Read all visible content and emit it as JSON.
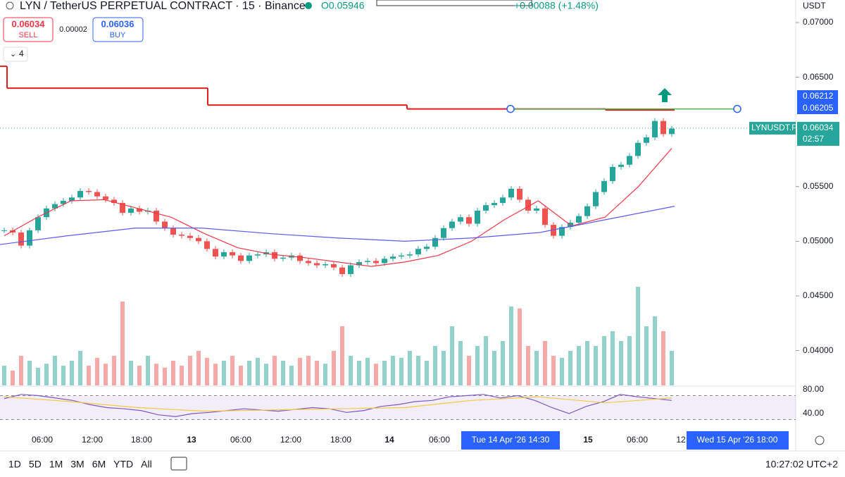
{
  "header": {
    "symbol": "LYN / TetherUS PERPETUAL CONTRACT · 15 · Binance",
    "open": "O0.05946",
    "change": "+0.00088 (+1.48%)"
  },
  "order_panel": {
    "sell_price": "0.06034",
    "sell": "SELL",
    "spread": "0.00002",
    "buy_price": "0.06036",
    "buy": "BUY",
    "indicators": "4"
  },
  "price_axis": {
    "currency": "USDT",
    "ylim": [
      0.0368,
      0.072
    ],
    "yticks": [
      {
        "value": 0.07,
        "label": "0.07000"
      },
      {
        "value": 0.065,
        "label": "0.06500"
      },
      {
        "value": 0.055,
        "label": "0.05500"
      },
      {
        "value": 0.05,
        "label": "0.05000"
      },
      {
        "value": 0.045,
        "label": "0.04500"
      },
      {
        "value": 0.04,
        "label": "0.04000"
      }
    ],
    "labels": [
      {
        "value": 0.06212,
        "label": "0.06212"
      },
      {
        "value": 0.06205,
        "label": "0.06205"
      }
    ],
    "last": {
      "name": "LYNUSDT.P",
      "value": 0.06034,
      "label": "0.06034",
      "countdown": "02:57"
    }
  },
  "chart": {
    "closes": [
      0.051,
      0.0508,
      0.0496,
      0.051,
      0.0522,
      0.053,
      0.0534,
      0.0537,
      0.054,
      0.0546,
      0.0545,
      0.0541,
      0.0538,
      0.0535,
      0.0526,
      0.053,
      0.0527,
      0.0528,
      0.0518,
      0.0512,
      0.0506,
      0.0505,
      0.0503,
      0.05,
      0.0493,
      0.0486,
      0.049,
      0.0487,
      0.0482,
      0.0487,
      0.0488,
      0.049,
      0.0484,
      0.0485,
      0.0487,
      0.0482,
      0.048,
      0.0478,
      0.0479,
      0.0476,
      0.047,
      0.0478,
      0.0481,
      0.0482,
      0.048,
      0.0484,
      0.0486,
      0.0487,
      0.0488,
      0.0493,
      0.0495,
      0.0503,
      0.0512,
      0.0518,
      0.0522,
      0.0516,
      0.0528,
      0.0533,
      0.0535,
      0.054,
      0.0548,
      0.0538,
      0.0528,
      0.053,
      0.0515,
      0.0505,
      0.0513,
      0.0517,
      0.0523,
      0.0532,
      0.0545,
      0.0555,
      0.0568,
      0.057,
      0.0578,
      0.059,
      0.0595,
      0.061,
      0.0598,
      0.0603
    ],
    "volumes": [
      20,
      15,
      30,
      25,
      18,
      22,
      30,
      20,
      25,
      35,
      20,
      28,
      22,
      30,
      85,
      25,
      20,
      30,
      22,
      18,
      25,
      20,
      30,
      35,
      28,
      22,
      25,
      30,
      20,
      25,
      28,
      22,
      30,
      25,
      20,
      28,
      30,
      25,
      22,
      35,
      60,
      30,
      25,
      28,
      22,
      25,
      30,
      28,
      35,
      30,
      25,
      40,
      35,
      60,
      45,
      30,
      40,
      50,
      35,
      45,
      80,
      78,
      40,
      35,
      45,
      30,
      28,
      35,
      40,
      45,
      40,
      50,
      55,
      45,
      50,
      100,
      60,
      70,
      55,
      35
    ],
    "ma_fast": [
      0.0505,
      0.0522,
      0.0537,
      0.0538,
      0.053,
      0.0522,
      0.0507,
      0.0494,
      0.0488,
      0.0485,
      0.0481,
      0.0477,
      0.0481,
      0.0487,
      0.05,
      0.052,
      0.0537,
      0.0514,
      0.0522,
      0.055,
      0.0585
    ],
    "ma_slow": [
      0.0497,
      0.0505,
      0.0512,
      0.0512,
      0.0507,
      0.0503,
      0.05,
      0.0503,
      0.0508,
      0.052,
      0.0532
    ],
    "resistance": [
      0.066,
      0.064,
      0.06245,
      0.0621,
      0.062
    ],
    "trend_line": 0.0621,
    "rsi": [
      65,
      72,
      70,
      66,
      62,
      55,
      50,
      48,
      45,
      38,
      35,
      40,
      42,
      45,
      48,
      46,
      44,
      47,
      50,
      48,
      42,
      45,
      52,
      55,
      60,
      62,
      68,
      70,
      72,
      66,
      70,
      62,
      50,
      40,
      52,
      60,
      72,
      68,
      65,
      62
    ],
    "rsi_ma": [
      68,
      60,
      50,
      44,
      46,
      48,
      50,
      62,
      68,
      58,
      66
    ],
    "rsi_ticks": [
      {
        "value": 80,
        "label": "80.00"
      },
      {
        "value": 40,
        "label": "40.00"
      }
    ],
    "rsi_bands": [
      70,
      30
    ]
  },
  "time_axis": {
    "labels": [
      "06:00",
      "12:00",
      "18:00",
      "13",
      "06:00",
      "12:00",
      "18:00",
      "14",
      "06:00",
      "15",
      "06:00",
      "12"
    ],
    "cursor_a": "Tue 14 Apr '26   14:30",
    "cursor_b": "Wed 15 Apr '26   18:00"
  },
  "toolbar": {
    "ranges": [
      "1D",
      "5D",
      "1M",
      "3M",
      "6M",
      "YTD",
      "All"
    ],
    "clock": "10:27:02 UTC+2"
  }
}
